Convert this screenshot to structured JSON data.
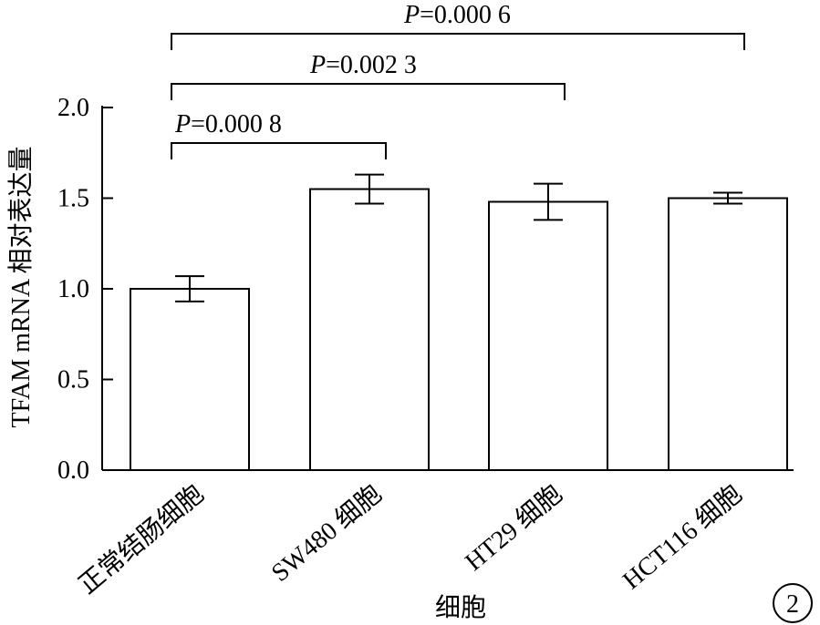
{
  "chart_data": {
    "type": "bar",
    "categories": [
      "正常结肠细胞",
      "SW480 细胞",
      "HT29 细胞",
      "HCT116 细胞"
    ],
    "values": [
      1.0,
      1.55,
      1.48,
      1.5
    ],
    "errors": [
      0.07,
      0.08,
      0.1,
      0.03
    ],
    "xlabel": "细胞",
    "ylabel": "TFAM mRNA 相对表达量",
    "ylim": [
      0,
      2.0
    ],
    "yticks": [
      0.0,
      0.5,
      1.0,
      1.5,
      2.0
    ],
    "ytick_labels": [
      "0.0",
      "0.5",
      "1.0",
      "1.5",
      "2.0"
    ],
    "bar_fill": "#ffffff",
    "bar_stroke": "#000000",
    "comparisons": [
      {
        "from": 0,
        "to": 1,
        "p_symbol": "P",
        "p_value": "=0.000 8"
      },
      {
        "from": 0,
        "to": 2,
        "p_symbol": "P",
        "p_value": "=0.002 3"
      },
      {
        "from": 0,
        "to": 3,
        "p_symbol": "P",
        "p_value": "=0.000 6"
      }
    ],
    "grid": false
  },
  "figure_number": "2"
}
